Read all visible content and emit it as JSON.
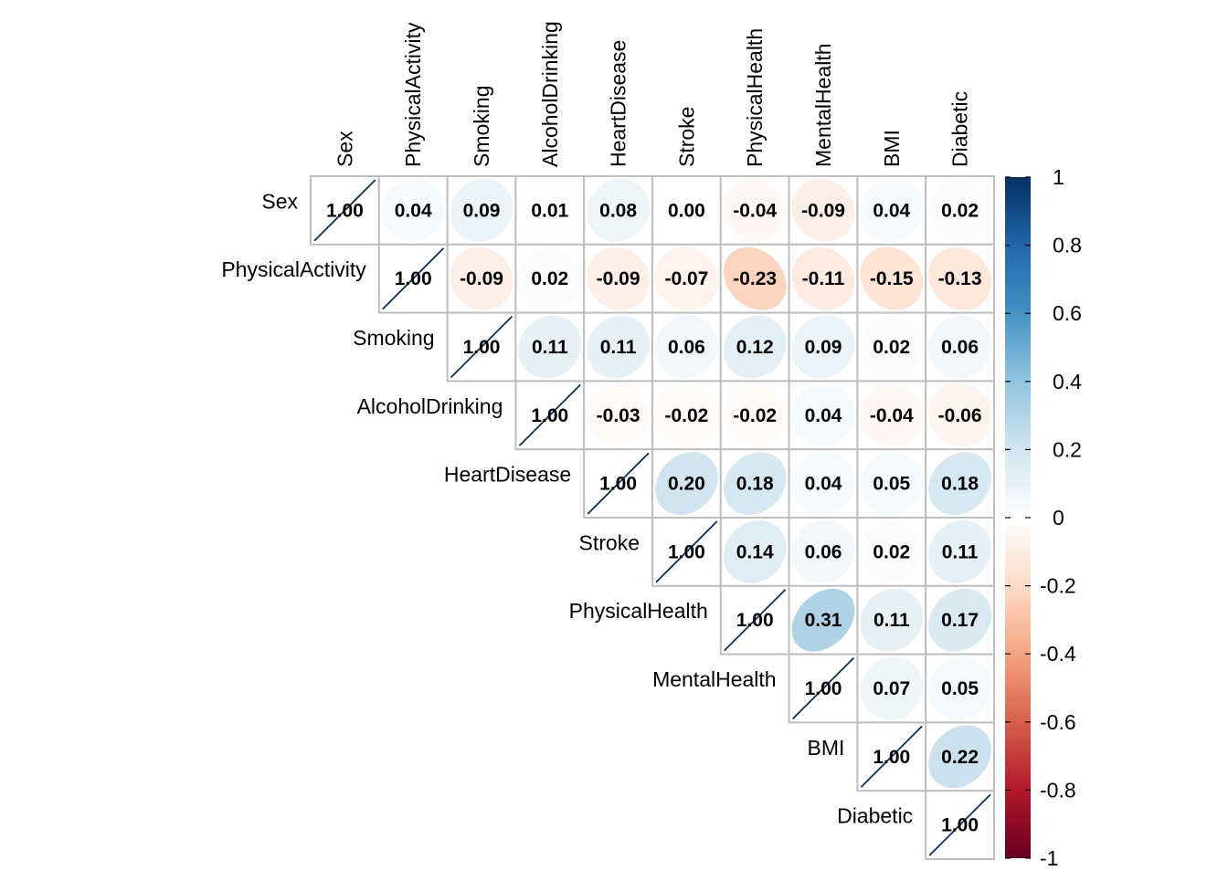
{
  "chart_data": {
    "type": "heatmap",
    "style": "upper-triangle correlation matrix with ellipse glyphs",
    "variables": [
      "Sex",
      "PhysicalActivity",
      "Smoking",
      "AlcoholDrinking",
      "HeartDisease",
      "Stroke",
      "PhysicalHealth",
      "MentalHealth",
      "BMI",
      "Diabetic"
    ],
    "matrix": [
      [
        1.0,
        0.04,
        0.09,
        0.01,
        0.08,
        0.0,
        -0.04,
        -0.09,
        0.04,
        0.02
      ],
      [
        null,
        1.0,
        -0.09,
        0.02,
        -0.09,
        -0.07,
        -0.23,
        -0.11,
        -0.15,
        -0.13
      ],
      [
        null,
        null,
        1.0,
        0.11,
        0.11,
        0.06,
        0.12,
        0.09,
        0.02,
        0.06
      ],
      [
        null,
        null,
        null,
        1.0,
        -0.03,
        -0.02,
        -0.02,
        0.04,
        -0.04,
        -0.06
      ],
      [
        null,
        null,
        null,
        null,
        1.0,
        0.2,
        0.18,
        0.04,
        0.05,
        0.18
      ],
      [
        null,
        null,
        null,
        null,
        null,
        1.0,
        0.14,
        0.06,
        0.02,
        0.11
      ],
      [
        null,
        null,
        null,
        null,
        null,
        null,
        1.0,
        0.31,
        0.11,
        0.17
      ],
      [
        null,
        null,
        null,
        null,
        null,
        null,
        null,
        1.0,
        0.07,
        0.05
      ],
      [
        null,
        null,
        null,
        null,
        null,
        null,
        null,
        null,
        1.0,
        0.22
      ],
      [
        null,
        null,
        null,
        null,
        null,
        null,
        null,
        null,
        null,
        1.0
      ]
    ],
    "value_labels": [
      [
        "1.00",
        "0.04",
        "0.09",
        "0.01",
        "0.08",
        "0.00",
        "-0.04",
        "-0.09",
        "0.04",
        "0.02"
      ],
      [
        null,
        "1.00",
        "-0.09",
        "0.02",
        "-0.09",
        "-0.07",
        "-0.23",
        "-0.11",
        "-0.15",
        "-0.13"
      ],
      [
        null,
        null,
        "1.00",
        "0.11",
        "0.11",
        "0.06",
        "0.12",
        "0.09",
        "0.02",
        "0.06"
      ],
      [
        null,
        null,
        null,
        "1.00",
        "-0.03",
        "-0.02",
        "-0.02",
        "0.04",
        "-0.04",
        "-0.06"
      ],
      [
        null,
        null,
        null,
        null,
        "1.00",
        "0.20",
        "0.18",
        "0.04",
        "0.05",
        "0.18"
      ],
      [
        null,
        null,
        null,
        null,
        null,
        "1.00",
        "0.14",
        "0.06",
        "0.02",
        "0.11"
      ],
      [
        null,
        null,
        null,
        null,
        null,
        null,
        "1.00",
        "0.31",
        "0.11",
        "0.17"
      ],
      [
        null,
        null,
        null,
        null,
        null,
        null,
        null,
        "1.00",
        "0.07",
        "0.05"
      ],
      [
        null,
        null,
        null,
        null,
        null,
        null,
        null,
        null,
        "1.00",
        "0.22"
      ],
      [
        null,
        null,
        null,
        null,
        null,
        null,
        null,
        null,
        null,
        "1.00"
      ]
    ],
    "colorbar": {
      "range": [
        -1,
        1
      ],
      "ticks": [
        1,
        0.8,
        0.6,
        0.4,
        0.2,
        0,
        -0.2,
        -0.4,
        -0.6,
        -0.8,
        -1
      ],
      "tick_labels": [
        "1",
        "0.8",
        "0.6",
        "0.4",
        "0.2",
        "0",
        "-0.2",
        "-0.4",
        "-0.6",
        "-0.8",
        "-1"
      ],
      "palette": [
        "#67001F",
        "#B2182B",
        "#D6604D",
        "#F4A582",
        "#FDDBC7",
        "#FFFFFF",
        "#D1E5F0",
        "#92C5DE",
        "#4393C3",
        "#2166AC",
        "#053061"
      ]
    },
    "title": "",
    "xlabel": "",
    "ylabel": "",
    "legend": "right",
    "grid": true
  }
}
